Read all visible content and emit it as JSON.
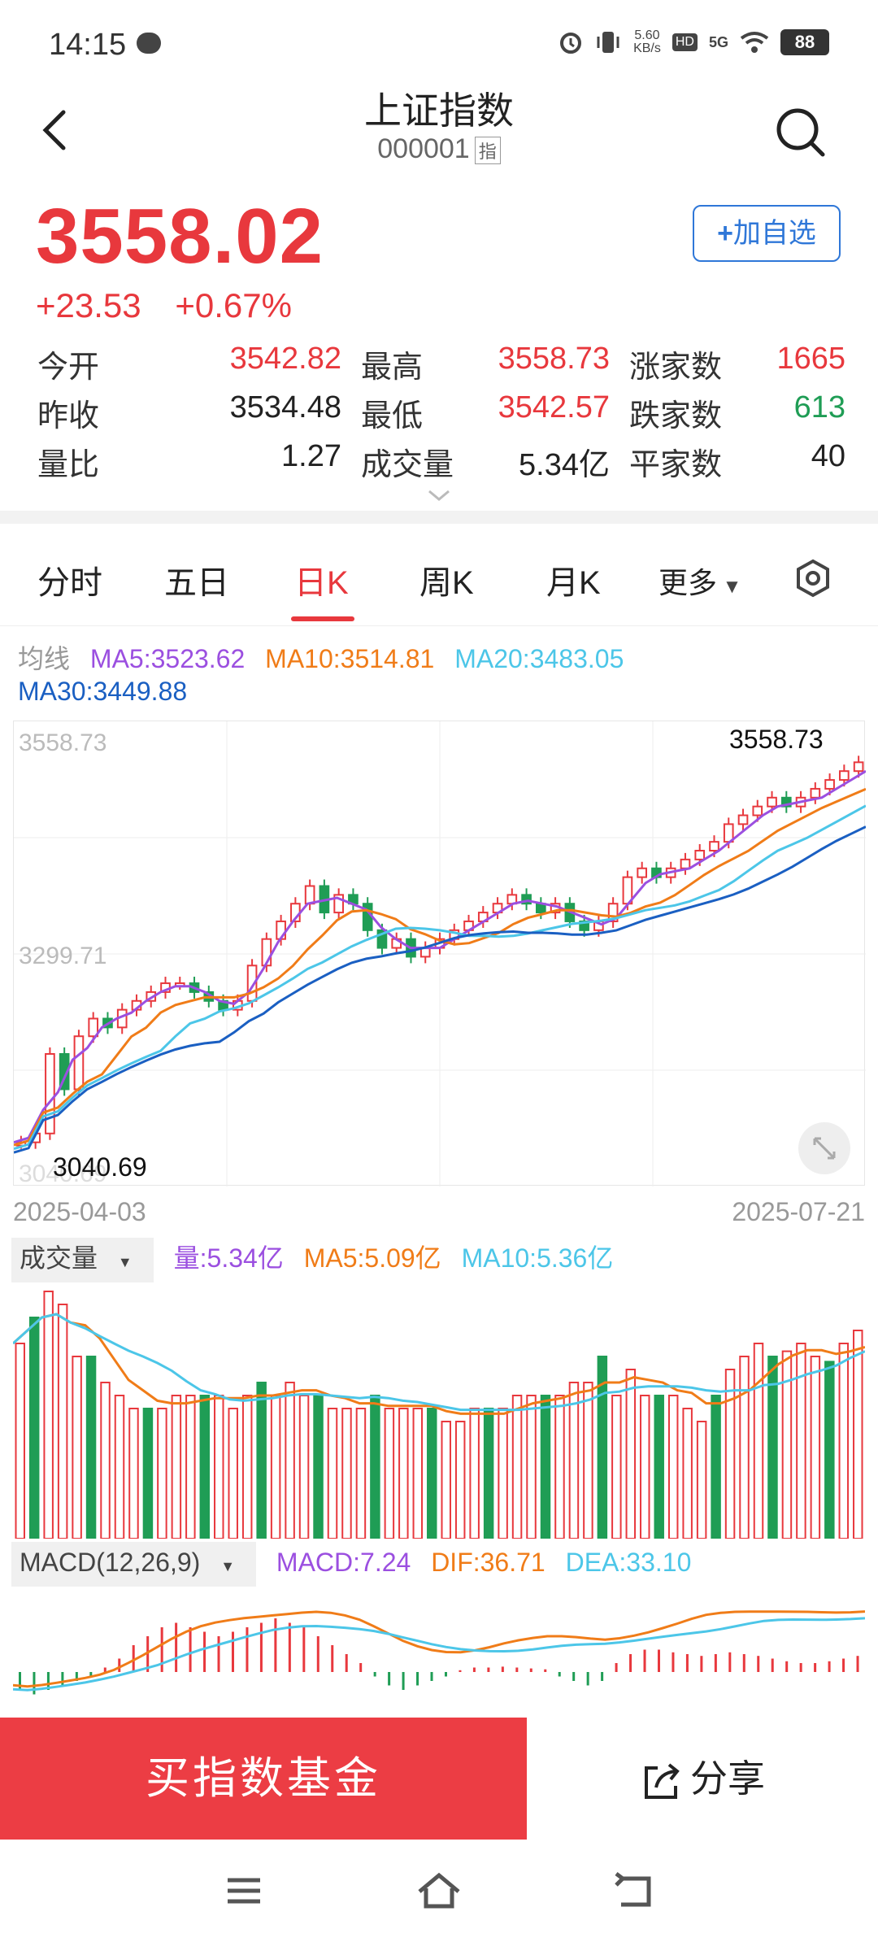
{
  "status": {
    "time": "14:15",
    "net_speed_value": "5.60",
    "net_speed_unit": "KB/s",
    "hd": "HD",
    "network": "5G",
    "battery": "88"
  },
  "header": {
    "title": "上证指数",
    "code": "000001",
    "code_tag": "指"
  },
  "quote": {
    "price": "3558.02",
    "change": "+23.53",
    "change_pct": "+0.67%",
    "add_label": "加自选"
  },
  "stats": {
    "open_label": "今开",
    "open": "3542.82",
    "high_label": "最高",
    "high": "3558.73",
    "up_label": "涨家数",
    "up": "1665",
    "prev_label": "昨收",
    "prev": "3534.48",
    "low_label": "最低",
    "low": "3542.57",
    "down_label": "跌家数",
    "down": "613",
    "ratio_label": "量比",
    "ratio": "1.27",
    "volume_label": "成交量",
    "volume": "5.34亿",
    "flat_label": "平家数",
    "flat": "40"
  },
  "tabs": [
    "分时",
    "五日",
    "日K",
    "周K",
    "月K",
    "更多"
  ],
  "colors": {
    "up": "#e8383d",
    "down": "#1f9d55",
    "ma5": "#9b4fe0",
    "ma10": "#f07c18",
    "ma20": "#4cc6e8",
    "ma30": "#1a5fc2"
  },
  "ma_legend": {
    "title": "均线",
    "ma5": "MA5:3523.62",
    "ma10": "MA10:3514.81",
    "ma20": "MA20:3483.05",
    "ma30": "MA30:3449.88"
  },
  "kline": {
    "top_price": "3558.73",
    "mid_price": "3299.71",
    "bottom_price": "3040.69",
    "high_mark": "3558.73",
    "low_mark": "3040.69",
    "start_date": "2025-04-03",
    "end_date": "2025-07-21"
  },
  "volume": {
    "chip": "成交量",
    "vol": "量:5.34亿",
    "ma5": "MA5:5.09亿",
    "ma10": "MA10:5.36亿"
  },
  "macd": {
    "chip": "MACD(12,26,9)",
    "macd": "MACD:7.24",
    "dif": "DIF:36.71",
    "dea": "DEA:33.10"
  },
  "actions": {
    "buy": "买指数基金",
    "share": "分享"
  }
}
